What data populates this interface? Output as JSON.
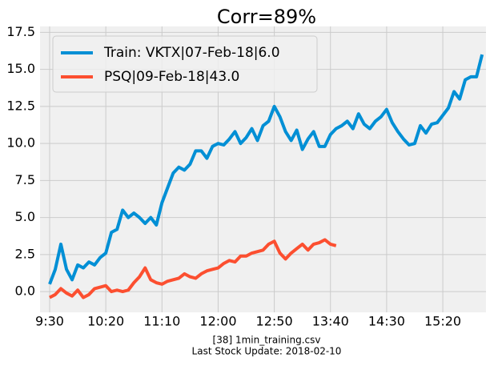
{
  "chart_data": {
    "type": "line",
    "title": "Corr=89%",
    "footer": [
      "[38] 1min_training.csv",
      "Last Stock Update: 2018-02-10"
    ],
    "x": [
      "9:30",
      "9:35",
      "9:40",
      "9:45",
      "9:50",
      "9:55",
      "10:00",
      "10:05",
      "10:10",
      "10:15",
      "10:20",
      "10:25",
      "10:30",
      "10:35",
      "10:40",
      "10:45",
      "10:50",
      "10:55",
      "11:00",
      "11:05",
      "11:10",
      "11:15",
      "11:20",
      "11:25",
      "11:30",
      "11:35",
      "11:40",
      "11:45",
      "11:50",
      "11:55",
      "12:00",
      "12:05",
      "12:10",
      "12:15",
      "12:20",
      "12:25",
      "12:30",
      "12:35",
      "12:40",
      "12:45",
      "12:50",
      "12:55",
      "13:00",
      "13:05",
      "13:10",
      "13:15",
      "13:20",
      "13:25",
      "13:30",
      "13:35",
      "13:40",
      "13:45",
      "13:50",
      "13:55",
      "14:00",
      "14:05",
      "14:10",
      "14:15",
      "14:20",
      "14:25",
      "14:30",
      "14:35",
      "14:40",
      "14:45",
      "14:50",
      "14:55",
      "15:00",
      "15:05",
      "15:10",
      "15:15",
      "15:20",
      "15:25",
      "15:30",
      "15:35",
      "15:40",
      "15:45",
      "15:50",
      "15:55"
    ],
    "series": [
      {
        "name": "Train: VKTX|07-Feb-18|6.0",
        "color": "#008fd5",
        "values": [
          0.5,
          1.5,
          3.2,
          1.5,
          0.8,
          1.8,
          1.6,
          2.0,
          1.8,
          2.3,
          2.6,
          4.0,
          4.2,
          5.5,
          5.0,
          5.3,
          5.0,
          4.6,
          5.0,
          4.5,
          6.0,
          7.0,
          8.0,
          8.4,
          8.2,
          8.6,
          9.5,
          9.5,
          9.0,
          9.8,
          10.0,
          9.9,
          10.3,
          10.8,
          10.0,
          10.4,
          11.0,
          10.2,
          11.2,
          11.5,
          12.5,
          11.8,
          10.8,
          10.2,
          10.9,
          9.6,
          10.3,
          10.8,
          9.8,
          9.8,
          10.6,
          11.0,
          11.2,
          11.5,
          11.0,
          12.0,
          11.3,
          11.0,
          11.5,
          11.8,
          12.3,
          11.4,
          10.8,
          10.3,
          9.9,
          10.0,
          11.2,
          10.7,
          11.3,
          11.4,
          11.9,
          12.4,
          13.5,
          13.0,
          14.3,
          14.5,
          14.5,
          16.0
        ]
      },
      {
        "name": "PSQ|09-Feb-18|43.0",
        "color": "#fc4f30",
        "values": [
          -0.4,
          -0.2,
          0.2,
          -0.1,
          -0.3,
          0.1,
          -0.4,
          -0.2,
          0.2,
          0.3,
          0.4,
          0.0,
          0.1,
          0.0,
          0.1,
          0.6,
          1.0,
          1.6,
          0.8,
          0.6,
          0.5,
          0.7,
          0.8,
          0.9,
          1.2,
          1.0,
          0.9,
          1.2,
          1.4,
          1.5,
          1.6,
          1.9,
          2.1,
          2.0,
          2.4,
          2.4,
          2.6,
          2.7,
          2.8,
          3.2,
          3.4,
          2.6,
          2.2,
          2.6,
          2.9,
          3.2,
          2.8,
          3.2,
          3.3,
          3.5,
          3.2,
          3.1,
          null,
          null,
          null,
          null,
          null,
          null,
          null,
          null,
          null,
          null,
          null,
          null,
          null,
          null,
          null,
          null,
          null,
          null,
          null,
          null,
          null,
          null,
          null,
          null,
          null,
          null
        ]
      }
    ],
    "xticks": [
      "9:30",
      "10:20",
      "11:10",
      "12:00",
      "12:50",
      "13:40",
      "14:30",
      "15:20"
    ],
    "ylim": [
      -1.4,
      17.9
    ],
    "yticks": [
      {
        "value": 0,
        "label": "0.0"
      },
      2.5,
      {
        "value": 5,
        "label": "5.0"
      },
      7.5,
      {
        "value": 10,
        "label": "10.0"
      },
      12.5,
      {
        "value": 15,
        "label": "15.0"
      },
      17.5
    ],
    "grid": true,
    "legend": "upper left"
  }
}
